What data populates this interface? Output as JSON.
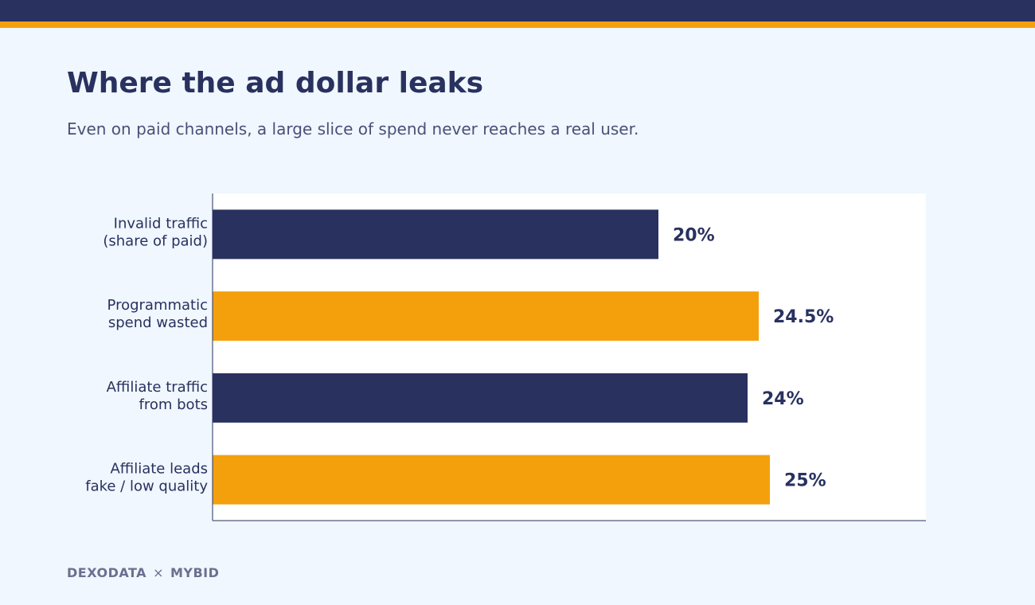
{
  "header": {
    "title": "Where the ad dollar leaks",
    "subtitle": "Even on paid channels, a large slice of spend never reaches a real user."
  },
  "footer": {
    "brand_left": "DEXODATA",
    "separator": "×",
    "brand_right": "MYBID"
  },
  "colors": {
    "navy": "#29315f",
    "orange": "#f4a00d",
    "background": "#f0f7fe",
    "plot_background": "#ffffff"
  },
  "chart_data": {
    "type": "bar",
    "orientation": "horizontal",
    "categories": [
      [
        "Invalid traffic",
        "(share of paid)"
      ],
      [
        "Programmatic",
        "spend wasted"
      ],
      [
        "Affiliate traffic",
        "from bots"
      ],
      [
        "Affiliate leads",
        "fake / low quality"
      ]
    ],
    "values": [
      20,
      24.5,
      24,
      25
    ],
    "value_labels": [
      "20%",
      "24.5%",
      "24%",
      "25%"
    ],
    "bar_colors": [
      "#29315f",
      "#f4a00d",
      "#29315f",
      "#f4a00d"
    ],
    "xlim": [
      0,
      32
    ],
    "grid": false,
    "legend": "none"
  }
}
